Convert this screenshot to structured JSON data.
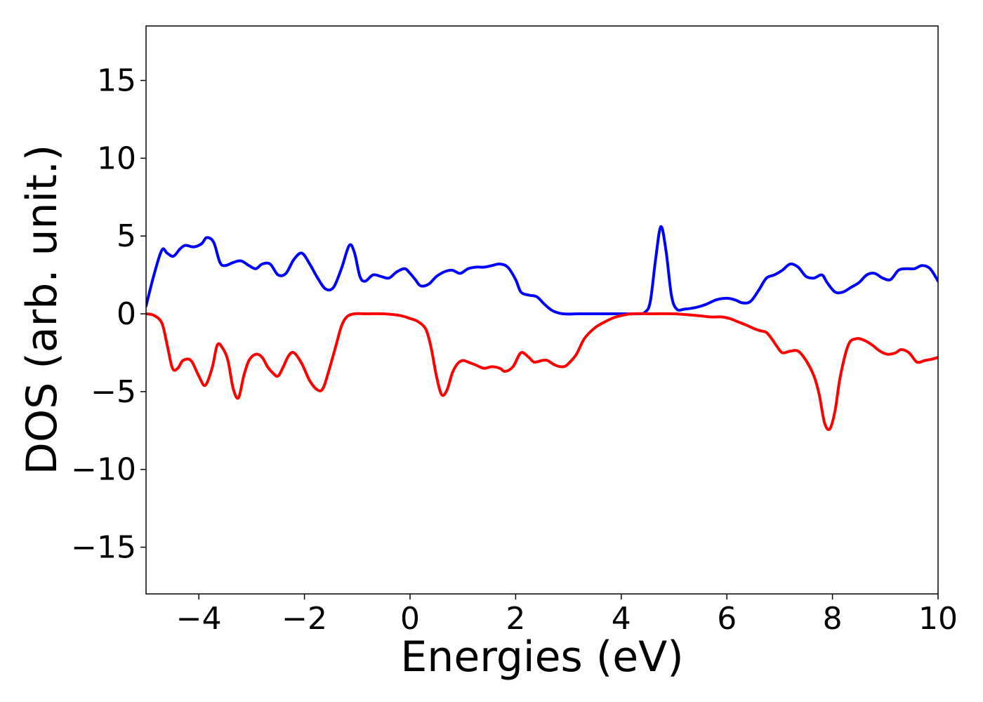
{
  "chart_data": {
    "type": "line",
    "title": "",
    "xlabel": "Energies (eV)",
    "ylabel": "DOS (arb. unit.)",
    "xlim": [
      -5,
      10
    ],
    "ylim": [
      -18,
      18.5
    ],
    "grid": false,
    "legend": "none",
    "x_ticks": [
      -4,
      -2,
      0,
      2,
      4,
      6,
      8,
      10
    ],
    "x_tick_labels": [
      "−4",
      "−2",
      "0",
      "2",
      "4",
      "6",
      "8",
      "10"
    ],
    "y_ticks": [
      -15,
      -10,
      -5,
      0,
      5,
      10,
      15
    ],
    "y_tick_labels": [
      "−15",
      "−10",
      "−5",
      "0",
      "5",
      "10",
      "15"
    ],
    "series": [
      {
        "color": "#0000ff",
        "x": [
          -5.0,
          -4.85,
          -4.7,
          -4.6,
          -4.48,
          -4.35,
          -4.25,
          -4.1,
          -3.95,
          -3.85,
          -3.72,
          -3.6,
          -3.5,
          -3.35,
          -3.2,
          -3.05,
          -2.92,
          -2.8,
          -2.65,
          -2.5,
          -2.35,
          -2.2,
          -2.05,
          -1.9,
          -1.75,
          -1.6,
          -1.45,
          -1.3,
          -1.15,
          -1.05,
          -0.95,
          -0.85,
          -0.7,
          -0.55,
          -0.4,
          -0.25,
          -0.1,
          0.0,
          0.1,
          0.2,
          0.35,
          0.5,
          0.65,
          0.8,
          0.95,
          1.1,
          1.25,
          1.4,
          1.55,
          1.7,
          1.85,
          2.0,
          2.1,
          2.25,
          2.4,
          2.55,
          2.7,
          2.9,
          3.2,
          3.6,
          4.0,
          4.3,
          4.45,
          4.55,
          4.65,
          4.75,
          4.85,
          4.95,
          5.05,
          5.2,
          5.4,
          5.6,
          5.8,
          6.0,
          6.15,
          6.3,
          6.45,
          6.6,
          6.75,
          6.9,
          7.05,
          7.2,
          7.35,
          7.5,
          7.65,
          7.8,
          7.9,
          8.05,
          8.2,
          8.35,
          8.5,
          8.65,
          8.8,
          8.95,
          9.1,
          9.25,
          9.4,
          9.55,
          9.7,
          9.85,
          10.0
        ],
        "y": [
          0.5,
          2.5,
          4.1,
          3.9,
          3.7,
          4.2,
          4.4,
          4.3,
          4.5,
          4.9,
          4.6,
          3.3,
          3.1,
          3.3,
          3.4,
          3.1,
          2.9,
          3.2,
          3.2,
          2.5,
          2.6,
          3.5,
          3.9,
          3.2,
          2.3,
          1.6,
          1.7,
          2.9,
          4.4,
          3.9,
          2.4,
          2.1,
          2.5,
          2.4,
          2.3,
          2.7,
          2.9,
          2.6,
          2.2,
          1.8,
          1.9,
          2.4,
          2.7,
          2.8,
          2.6,
          2.9,
          3.0,
          3.0,
          3.1,
          3.2,
          3.0,
          2.2,
          1.4,
          1.2,
          1.1,
          0.6,
          0.2,
          0.0,
          0.0,
          0.0,
          0.0,
          0.0,
          0.1,
          0.8,
          3.5,
          5.6,
          4.0,
          1.2,
          0.3,
          0.3,
          0.4,
          0.6,
          0.9,
          1.0,
          0.9,
          0.7,
          0.8,
          1.5,
          2.3,
          2.5,
          2.8,
          3.2,
          3.0,
          2.4,
          2.3,
          2.5,
          2.0,
          1.4,
          1.4,
          1.7,
          2.0,
          2.5,
          2.6,
          2.3,
          2.2,
          2.8,
          2.9,
          2.9,
          3.1,
          2.9,
          2.1
        ]
      },
      {
        "color": "#ff0000",
        "x": [
          -5.0,
          -4.85,
          -4.7,
          -4.6,
          -4.5,
          -4.4,
          -4.3,
          -4.15,
          -4.0,
          -3.88,
          -3.75,
          -3.65,
          -3.55,
          -3.45,
          -3.35,
          -3.25,
          -3.15,
          -3.05,
          -2.92,
          -2.8,
          -2.7,
          -2.6,
          -2.5,
          -2.4,
          -2.3,
          -2.2,
          -2.05,
          -1.9,
          -1.75,
          -1.65,
          -1.55,
          -1.4,
          -1.3,
          -1.2,
          -1.05,
          -0.8,
          -0.5,
          -0.2,
          0.0,
          0.15,
          0.3,
          0.4,
          0.5,
          0.6,
          0.7,
          0.8,
          0.9,
          1.0,
          1.1,
          1.25,
          1.4,
          1.55,
          1.7,
          1.8,
          1.95,
          2.1,
          2.25,
          2.35,
          2.5,
          2.6,
          2.75,
          2.9,
          3.0,
          3.15,
          3.3,
          3.5,
          3.7,
          3.9,
          4.2,
          4.6,
          5.0,
          5.4,
          5.7,
          5.9,
          6.05,
          6.2,
          6.35,
          6.55,
          6.65,
          6.75,
          6.85,
          6.95,
          7.05,
          7.2,
          7.35,
          7.5,
          7.65,
          7.75,
          7.85,
          7.95,
          8.05,
          8.15,
          8.3,
          8.45,
          8.6,
          8.75,
          8.9,
          9.05,
          9.2,
          9.3,
          9.45,
          9.6,
          9.75,
          9.9,
          10.0
        ],
        "y": [
          0.0,
          -0.1,
          -0.6,
          -2.0,
          -3.5,
          -3.5,
          -3.0,
          -3.0,
          -4.0,
          -4.6,
          -3.5,
          -2.0,
          -2.2,
          -3.0,
          -4.8,
          -5.4,
          -4.0,
          -3.0,
          -2.6,
          -2.8,
          -3.4,
          -3.8,
          -4.0,
          -3.4,
          -2.7,
          -2.5,
          -3.2,
          -4.3,
          -4.9,
          -4.8,
          -3.8,
          -2.0,
          -0.8,
          -0.2,
          0.0,
          0.0,
          0.0,
          -0.1,
          -0.3,
          -0.5,
          -1.0,
          -2.2,
          -4.0,
          -5.2,
          -4.9,
          -3.8,
          -3.2,
          -3.0,
          -3.1,
          -3.3,
          -3.5,
          -3.4,
          -3.5,
          -3.7,
          -3.4,
          -2.5,
          -2.8,
          -3.1,
          -3.0,
          -3.0,
          -3.3,
          -3.4,
          -3.2,
          -2.6,
          -1.6,
          -0.9,
          -0.5,
          -0.2,
          0.0,
          0.0,
          0.0,
          -0.1,
          -0.2,
          -0.2,
          -0.3,
          -0.5,
          -0.7,
          -1.0,
          -1.1,
          -1.2,
          -1.6,
          -2.1,
          -2.5,
          -2.4,
          -2.4,
          -3.0,
          -4.0,
          -5.2,
          -7.0,
          -7.4,
          -6.2,
          -4.0,
          -2.0,
          -1.6,
          -1.7,
          -2.0,
          -2.4,
          -2.6,
          -2.5,
          -2.3,
          -2.5,
          -3.1,
          -3.0,
          -2.9,
          -2.8
        ]
      }
    ]
  }
}
